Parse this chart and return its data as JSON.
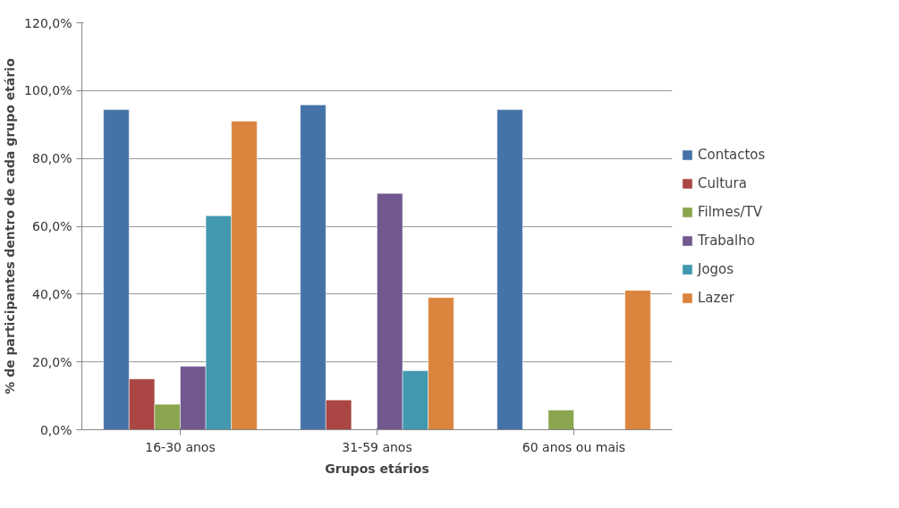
{
  "chart_data": {
    "type": "bar",
    "xlabel": "Grupos etários",
    "ylabel": "% de participantes dentro de cada grupo etário",
    "categories": [
      "16-30 anos",
      "31-59 anos",
      "60 anos ou mais"
    ],
    "series": [
      {
        "name": "Contactos",
        "color": "#4572a7",
        "values": [
          94.4,
          95.8,
          94.4
        ]
      },
      {
        "name": "Cultura",
        "color": "#aa4643",
        "values": [
          15.0,
          8.8,
          null
        ]
      },
      {
        "name": "Filmes/TV",
        "color": "#89a54e",
        "values": [
          7.5,
          null,
          5.8
        ]
      },
      {
        "name": "Trabalho",
        "color": "#71588f",
        "values": [
          18.7,
          69.7,
          null
        ]
      },
      {
        "name": "Jogos",
        "color": "#4198af",
        "values": [
          63.1,
          17.4,
          null
        ]
      },
      {
        "name": "Lazer",
        "color": "#db843d",
        "values": [
          91.0,
          39.0,
          41.1
        ]
      }
    ],
    "ylim": [
      0,
      120
    ],
    "yticks": [
      {
        "value": 0,
        "label": "0,0%"
      },
      {
        "value": 20,
        "label": "20,0%"
      },
      {
        "value": 40,
        "label": "40,0%"
      },
      {
        "value": 60,
        "label": "60,0%"
      },
      {
        "value": 80,
        "label": "80,0%"
      },
      {
        "value": 100,
        "label": "100,0%"
      },
      {
        "value": 120,
        "label": "120,0%"
      }
    ],
    "grid": "y",
    "legend": "right"
  }
}
